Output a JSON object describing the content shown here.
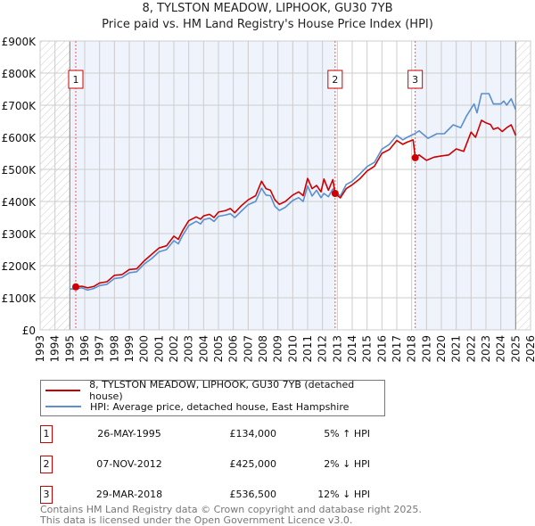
{
  "chart_data": {
    "type": "line",
    "title": "8, TYLSTON MEADOW, LIPHOOK, GU30 7YB",
    "subtitle": "Price paid vs. HM Land Registry's House Price Index (HPI)",
    "xlim": [
      1993,
      2026
    ],
    "ylim": [
      0,
      900000
    ],
    "x_ticks": [
      "1993",
      "1994",
      "1995",
      "1996",
      "1997",
      "1998",
      "1999",
      "2000",
      "2001",
      "2002",
      "2003",
      "2004",
      "2005",
      "2006",
      "2007",
      "2008",
      "2009",
      "2010",
      "2011",
      "2012",
      "2013",
      "2014",
      "2015",
      "2016",
      "2017",
      "2018",
      "2019",
      "2020",
      "2021",
      "2022",
      "2023",
      "2024",
      "2025",
      "2026"
    ],
    "y_ticks": [
      {
        "v": 0,
        "label": "£0"
      },
      {
        "v": 100000,
        "label": "£100K"
      },
      {
        "v": 200000,
        "label": "£200K"
      },
      {
        "v": 300000,
        "label": "£300K"
      },
      {
        "v": 400000,
        "label": "£400K"
      },
      {
        "v": 500000,
        "label": "£500K"
      },
      {
        "v": 600000,
        "label": "£600K"
      },
      {
        "v": 700000,
        "label": "£700K"
      },
      {
        "v": 800000,
        "label": "£800K"
      },
      {
        "v": 900000,
        "label": "£900K"
      }
    ],
    "grid": true,
    "data_range": [
      1995.0,
      2025.0
    ],
    "series": [
      {
        "name": "8, TYLSTON MEADOW, LIPHOOK, GU30 7YB (detached house)",
        "color": "#cc0000",
        "points": [
          [
            1995.4,
            134000
          ],
          [
            1995.8,
            136000
          ],
          [
            1996.2,
            131000
          ],
          [
            1996.6,
            135000
          ],
          [
            1997.0,
            146000
          ],
          [
            1997.5,
            150000
          ],
          [
            1998.0,
            170000
          ],
          [
            1998.5,
            172000
          ],
          [
            1999.0,
            188000
          ],
          [
            1999.5,
            190000
          ],
          [
            2000.0,
            215000
          ],
          [
            2000.5,
            235000
          ],
          [
            2001.0,
            255000
          ],
          [
            2001.5,
            262000
          ],
          [
            2002.0,
            292000
          ],
          [
            2002.3,
            282000
          ],
          [
            2002.6,
            310000
          ],
          [
            2003.0,
            340000
          ],
          [
            2003.5,
            352000
          ],
          [
            2003.8,
            345000
          ],
          [
            2004.0,
            355000
          ],
          [
            2004.4,
            360000
          ],
          [
            2004.7,
            350000
          ],
          [
            2005.0,
            367000
          ],
          [
            2005.5,
            372000
          ],
          [
            2005.8,
            378000
          ],
          [
            2006.1,
            365000
          ],
          [
            2006.5,
            385000
          ],
          [
            2007.0,
            405000
          ],
          [
            2007.5,
            418000
          ],
          [
            2007.9,
            463000
          ],
          [
            2008.2,
            440000
          ],
          [
            2008.5,
            435000
          ],
          [
            2008.8,
            405000
          ],
          [
            2009.1,
            391000
          ],
          [
            2009.5,
            400000
          ],
          [
            2010.0,
            420000
          ],
          [
            2010.4,
            430000
          ],
          [
            2010.7,
            418000
          ],
          [
            2011.0,
            472000
          ],
          [
            2011.3,
            440000
          ],
          [
            2011.6,
            450000
          ],
          [
            2011.9,
            430000
          ],
          [
            2012.1,
            470000
          ],
          [
            2012.4,
            435000
          ],
          [
            2012.7,
            468000
          ],
          [
            2012.85,
            425000
          ],
          [
            2013.2,
            411000
          ],
          [
            2013.6,
            440000
          ],
          [
            2014.0,
            452000
          ],
          [
            2014.5,
            470000
          ],
          [
            2015.0,
            495000
          ],
          [
            2015.5,
            510000
          ],
          [
            2016.0,
            550000
          ],
          [
            2016.5,
            562000
          ],
          [
            2017.0,
            590000
          ],
          [
            2017.4,
            578000
          ],
          [
            2017.7,
            585000
          ],
          [
            2018.1,
            592000
          ],
          [
            2018.24,
            536500
          ],
          [
            2018.5,
            545000
          ],
          [
            2019.0,
            528000
          ],
          [
            2019.5,
            538000
          ],
          [
            2020.0,
            542000
          ],
          [
            2020.5,
            545000
          ],
          [
            2021.0,
            564000
          ],
          [
            2021.5,
            556000
          ],
          [
            2022.0,
            616000
          ],
          [
            2022.3,
            600000
          ],
          [
            2022.7,
            653000
          ],
          [
            2023.0,
            645000
          ],
          [
            2023.3,
            640000
          ],
          [
            2023.5,
            625000
          ],
          [
            2023.8,
            630000
          ],
          [
            2024.1,
            618000
          ],
          [
            2024.4,
            630000
          ],
          [
            2024.7,
            639000
          ],
          [
            2025.0,
            606000
          ]
        ]
      },
      {
        "name": "HPI: Average price, detached house, East Hampshire",
        "color": "#5b8fd0",
        "points": [
          [
            1995.0,
            127000
          ],
          [
            1995.4,
            128000
          ],
          [
            1995.8,
            131000
          ],
          [
            1996.2,
            124000
          ],
          [
            1996.6,
            129000
          ],
          [
            1997.0,
            138000
          ],
          [
            1997.5,
            142000
          ],
          [
            1998.0,
            160000
          ],
          [
            1998.5,
            163000
          ],
          [
            1999.0,
            178000
          ],
          [
            1999.5,
            181000
          ],
          [
            2000.0,
            205000
          ],
          [
            2000.5,
            222000
          ],
          [
            2001.0,
            243000
          ],
          [
            2001.5,
            250000
          ],
          [
            2002.0,
            278000
          ],
          [
            2002.3,
            268000
          ],
          [
            2002.6,
            295000
          ],
          [
            2003.0,
            325000
          ],
          [
            2003.5,
            338000
          ],
          [
            2003.8,
            330000
          ],
          [
            2004.0,
            343000
          ],
          [
            2004.4,
            348000
          ],
          [
            2004.7,
            338000
          ],
          [
            2005.0,
            354000
          ],
          [
            2005.5,
            358000
          ],
          [
            2005.8,
            362000
          ],
          [
            2006.1,
            350000
          ],
          [
            2006.5,
            368000
          ],
          [
            2007.0,
            390000
          ],
          [
            2007.5,
            400000
          ],
          [
            2007.9,
            441000
          ],
          [
            2008.2,
            420000
          ],
          [
            2008.5,
            418000
          ],
          [
            2008.8,
            385000
          ],
          [
            2009.1,
            372000
          ],
          [
            2009.5,
            382000
          ],
          [
            2010.0,
            403000
          ],
          [
            2010.4,
            412000
          ],
          [
            2010.7,
            400000
          ],
          [
            2011.0,
            449000
          ],
          [
            2011.3,
            417000
          ],
          [
            2011.6,
            435000
          ],
          [
            2011.9,
            412000
          ],
          [
            2012.1,
            425000
          ],
          [
            2012.4,
            415000
          ],
          [
            2012.7,
            439000
          ],
          [
            2012.85,
            431000
          ],
          [
            2013.2,
            417000
          ],
          [
            2013.6,
            453000
          ],
          [
            2014.0,
            463000
          ],
          [
            2014.5,
            485000
          ],
          [
            2015.0,
            509000
          ],
          [
            2015.5,
            522000
          ],
          [
            2016.0,
            563000
          ],
          [
            2016.5,
            578000
          ],
          [
            2017.0,
            606000
          ],
          [
            2017.4,
            592000
          ],
          [
            2017.7,
            600000
          ],
          [
            2018.2,
            611000
          ],
          [
            2018.5,
            620000
          ],
          [
            2019.1,
            597000
          ],
          [
            2019.7,
            611000
          ],
          [
            2020.2,
            611000
          ],
          [
            2020.8,
            639000
          ],
          [
            2021.3,
            630000
          ],
          [
            2021.7,
            667000
          ],
          [
            2022.2,
            704000
          ],
          [
            2022.4,
            676000
          ],
          [
            2022.7,
            736000
          ],
          [
            2023.2,
            736000
          ],
          [
            2023.5,
            704000
          ],
          [
            2024.0,
            704000
          ],
          [
            2024.2,
            713000
          ],
          [
            2024.4,
            700000
          ],
          [
            2024.7,
            720000
          ],
          [
            2025.0,
            686000
          ]
        ]
      }
    ],
    "sales": [
      {
        "id": "1",
        "x": 1995.4,
        "y": 134000
      },
      {
        "id": "2",
        "x": 2012.85,
        "y": 425000
      },
      {
        "id": "3",
        "x": 2018.24,
        "y": 536500
      }
    ]
  },
  "legend": {
    "red": "8, TYLSTON MEADOW, LIPHOOK, GU30 7YB (detached house)",
    "blue": "HPI: Average price, detached house, East Hampshire"
  },
  "table": [
    {
      "id": "1",
      "date": "26-MAY-1995",
      "price": "£134,000",
      "hpi": "5% ↑ HPI"
    },
    {
      "id": "2",
      "date": "07-NOV-2012",
      "price": "£425,000",
      "hpi": "2% ↓ HPI"
    },
    {
      "id": "3",
      "date": "29-MAR-2018",
      "price": "£536,500",
      "hpi": "12% ↓ HPI"
    }
  ],
  "footer": {
    "line1": "Contains HM Land Registry data © Crown copyright and database right 2025.",
    "line2": "This data is licensed under the Open Government Licence v3.0."
  }
}
